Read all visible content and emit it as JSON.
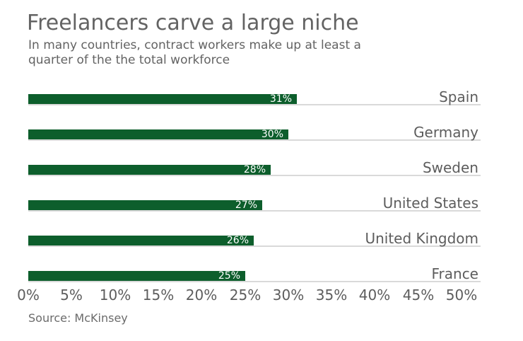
{
  "title": "Freelancers carve a large niche",
  "subtitle_line1": "In many countries, contract workers make up at least a",
  "subtitle_line2": "quarter of the the total workforce",
  "source": "Source: McKinsey",
  "colors": {
    "bar": "#0d5e2c",
    "track": "#d9d9d9",
    "heading_text": "#636363",
    "axis_text": "#5d5d5d",
    "value_label_text": "#ffffff",
    "background": "#ffffff"
  },
  "chart_data": {
    "type": "bar",
    "orientation": "horizontal",
    "title": "Freelancers carve a large niche",
    "subtitle": "In many countries, contract workers make up at least a quarter of the the total workforce",
    "categories": [
      "Spain",
      "Germany",
      "Sweden",
      "United States",
      "United Kingdom",
      "France"
    ],
    "values": [
      31,
      30,
      28,
      27,
      26,
      25
    ],
    "value_labels": [
      "31%",
      "30%",
      "28%",
      "27%",
      "26%",
      "25%"
    ],
    "xlabel": "",
    "ylabel": "",
    "xlim": [
      0,
      50
    ],
    "tick_values": [
      0,
      5,
      10,
      15,
      20,
      25,
      30,
      35,
      40,
      45,
      50
    ],
    "ticks": [
      "0%",
      "5%",
      "10%",
      "15%",
      "20%",
      "25%",
      "30%",
      "35%",
      "40%",
      "45%",
      "50%"
    ],
    "grid": false,
    "legend": "none",
    "source": "Source: McKinsey"
  }
}
